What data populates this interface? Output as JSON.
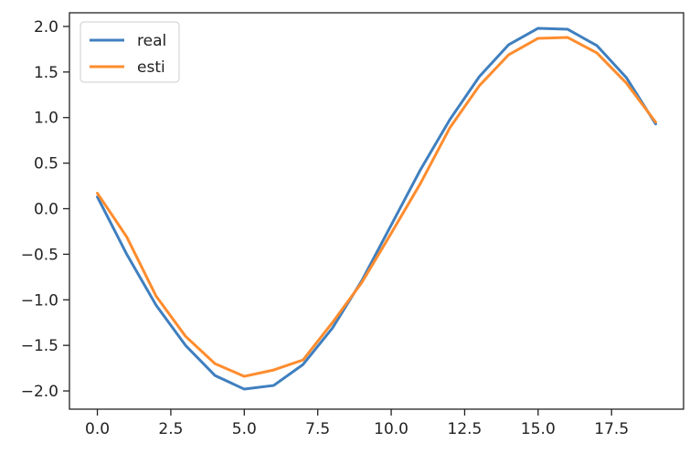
{
  "chart_data": {
    "type": "line",
    "title": "",
    "xlabel": "",
    "ylabel": "",
    "xlim": [
      -0.95,
      19.95
    ],
    "ylim": [
      -2.2,
      2.15
    ],
    "xticks": [
      0.0,
      2.5,
      5.0,
      7.5,
      10.0,
      12.5,
      15.0,
      17.5
    ],
    "xtick_labels": [
      "0.0",
      "2.5",
      "5.0",
      "7.5",
      "10.0",
      "12.5",
      "15.0",
      "17.5"
    ],
    "yticks": [
      2.0,
      1.5,
      1.0,
      0.5,
      0.0,
      -0.5,
      -1.0,
      -1.5,
      -2.0
    ],
    "ytick_labels": [
      "2.0",
      "1.5",
      "1.0",
      "0.5",
      "0.0",
      "−0.5",
      "−1.0",
      "−1.5",
      "−2.0"
    ],
    "grid": false,
    "legend_position": "top-left",
    "x": [
      0,
      1,
      2,
      3,
      4,
      5,
      6,
      7,
      8,
      9,
      10,
      11,
      12,
      13,
      14,
      15,
      16,
      17,
      18,
      19
    ],
    "series": [
      {
        "name": "real",
        "color": "#3f7fbf",
        "values": [
          0.13,
          -0.5,
          -1.06,
          -1.5,
          -1.83,
          -1.98,
          -1.94,
          -1.71,
          -1.31,
          -0.79,
          -0.18,
          0.43,
          0.98,
          1.45,
          1.8,
          1.98,
          1.97,
          1.79,
          1.44,
          0.93
        ]
      },
      {
        "name": "esti",
        "color": "#ff8c2e",
        "values": [
          0.17,
          -0.31,
          -0.96,
          -1.4,
          -1.7,
          -1.84,
          -1.77,
          -1.66,
          -1.25,
          -0.81,
          -0.27,
          0.28,
          0.89,
          1.35,
          1.69,
          1.87,
          1.88,
          1.71,
          1.38,
          0.95
        ]
      }
    ]
  }
}
